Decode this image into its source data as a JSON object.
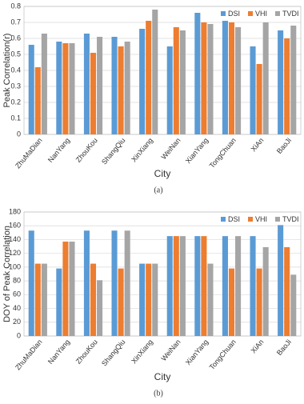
{
  "chart_data": [
    {
      "type": "bar",
      "caption": "(a)",
      "x_label": "City",
      "y_label": "Peak Correlation(r)",
      "categories": [
        "ZhuMaDian",
        "NanYang",
        "ZhouKou",
        "ShangQiu",
        "XinXiang",
        "WeiNan",
        "XianYang",
        "TongChuan",
        "XiAn",
        "BaoJi"
      ],
      "series": [
        {
          "name": "DSI",
          "color": "#5b9bd5",
          "values": [
            0.56,
            0.58,
            0.63,
            0.61,
            0.66,
            0.55,
            0.76,
            0.71,
            0.55,
            0.65
          ]
        },
        {
          "name": "VHI",
          "color": "#ed7d31",
          "values": [
            0.42,
            0.57,
            0.51,
            0.55,
            0.71,
            0.67,
            0.7,
            0.7,
            0.44,
            0.6
          ]
        },
        {
          "name": "TVDI",
          "color": "#a5a5a5",
          "values": [
            0.63,
            0.57,
            0.61,
            0.58,
            0.78,
            0.65,
            0.69,
            0.67,
            0.7,
            0.68
          ]
        }
      ],
      "ylim": [
        0,
        0.8
      ],
      "yticks": [
        0,
        0.1,
        0.2,
        0.3,
        0.4,
        0.5,
        0.6,
        0.7,
        0.8
      ],
      "grid": true,
      "legend": "top-right"
    },
    {
      "type": "bar",
      "caption": "(b)",
      "x_label": "City",
      "y_label": "DOY of Peak Correlation",
      "categories": [
        "ZhuMaDian",
        "NanYang",
        "ZhouKou",
        "ShangQiu",
        "XinXiang",
        "WeiNan",
        "XianYang",
        "TongChuan",
        "XiAn",
        "BaoJi"
      ],
      "series": [
        {
          "name": "DSI",
          "color": "#5b9bd5",
          "values": [
            153,
            98,
            153,
            153,
            105,
            145,
            145,
            145,
            145,
            161
          ]
        },
        {
          "name": "VHI",
          "color": "#ed7d31",
          "values": [
            105,
            137,
            105,
            98,
            105,
            145,
            145,
            98,
            98,
            129
          ]
        },
        {
          "name": "TVDI",
          "color": "#a5a5a5",
          "values": [
            105,
            137,
            81,
            153,
            105,
            145,
            105,
            145,
            129,
            89
          ]
        }
      ],
      "ylim": [
        0,
        180
      ],
      "yticks": [
        0,
        20,
        40,
        60,
        80,
        100,
        120,
        140,
        160,
        180
      ],
      "grid": true,
      "legend": "top-right"
    }
  ]
}
